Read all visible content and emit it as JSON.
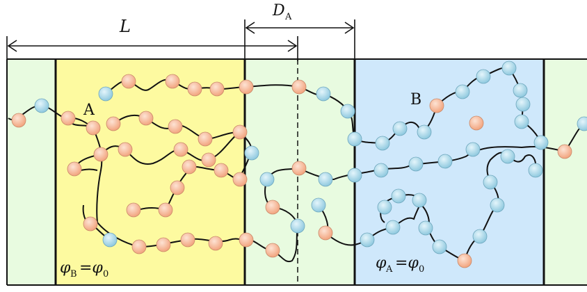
{
  "labels": {
    "L": "L",
    "D_main": "D",
    "D_sub": "A",
    "A": "A",
    "B": "B",
    "phiB_phi": "φ",
    "phiB_sub": "B",
    "phiB_eq": "=φ",
    "phiB_sub0": "0",
    "phiA_phi": "φ",
    "phiA_sub": "A",
    "phiA_eq": "=φ",
    "phiA_sub0": "0"
  },
  "colors": {
    "region_A": "#fdfaa0",
    "region_interface": "#e8fbe0",
    "region_B": "#cfe8fb",
    "bead_A": "#f6b898",
    "bead_B": "#a9d8ea",
    "chain": "#111111"
  }
}
